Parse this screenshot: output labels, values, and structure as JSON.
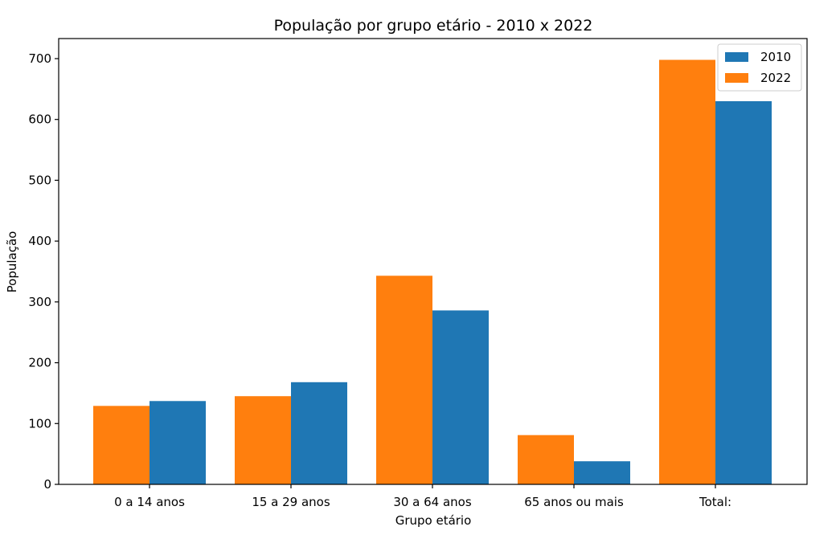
{
  "chart_data": {
    "type": "bar",
    "title": "População por grupo etário - 2010 x 2022",
    "xlabel": "Grupo etário",
    "ylabel": "População",
    "categories": [
      "0 a 14 anos",
      "15 a 29 anos",
      "30 a 64 anos",
      "65 anos ou mais",
      "Total:"
    ],
    "series": [
      {
        "name": "2010",
        "color": "#1f77b4",
        "values": [
          137,
          168,
          286,
          38,
          630
        ]
      },
      {
        "name": "2022",
        "color": "#ff7f0e",
        "values": [
          129,
          145,
          343,
          81,
          698
        ]
      }
    ],
    "draw_order": [
      "2022",
      "2010"
    ],
    "ylim": [
      0,
      733
    ],
    "yticks": [
      0,
      100,
      200,
      300,
      400,
      500,
      600,
      700
    ],
    "grid": false,
    "legend": "top-right"
  }
}
